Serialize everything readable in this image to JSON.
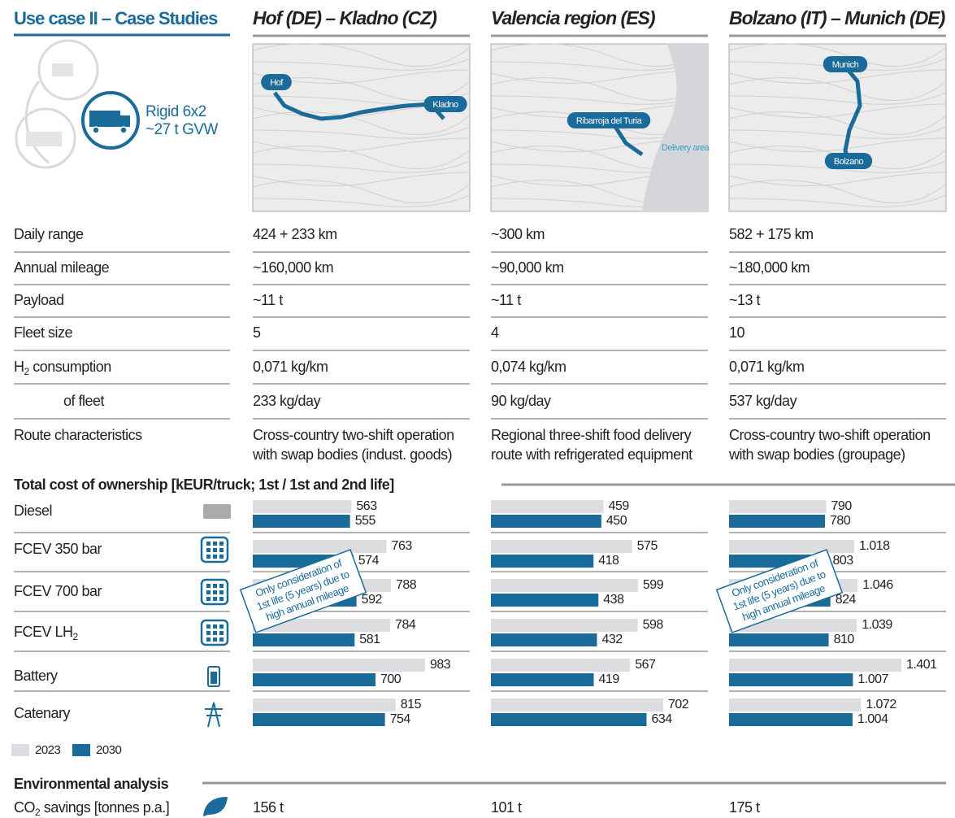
{
  "header": {
    "title": "Use case II – Case Studies",
    "vehicle": [
      "Rigid 6x2",
      "~27 t GVW"
    ]
  },
  "cases": [
    {
      "title": "Hof (DE) – Kladno (CZ)",
      "map_labels": [
        "Hof",
        "Kladno"
      ]
    },
    {
      "title": "Valencia region (ES)",
      "map_labels": [
        "Ribarroja del Turia",
        "Delivery area"
      ]
    },
    {
      "title": "Bolzano (IT) – Munich (DE)",
      "map_labels": [
        "Munich",
        "Bolzano"
      ]
    }
  ],
  "specs": {
    "rows": [
      {
        "label": "Daily range",
        "values": [
          "424 + 233 km",
          "~300 km",
          "582 + 175 km"
        ]
      },
      {
        "label": "Annual mileage",
        "values": [
          "~160,000 km",
          "~90,000 km",
          "~180,000 km"
        ]
      },
      {
        "label": "Payload",
        "values": [
          "~11 t",
          "~11 t",
          "~13 t"
        ]
      },
      {
        "label": "Fleet size",
        "values": [
          5,
          4,
          10
        ]
      },
      {
        "label": {
          "text": "H",
          "sub": "2",
          "after": " consumption"
        },
        "values": [
          "0,071 kg/km",
          "0,074 kg/km",
          "0,071 kg/km"
        ]
      },
      {
        "label": "of fleet",
        "values": [
          "233 kg/day",
          "90 kg/day",
          "537 kg/day"
        ]
      },
      {
        "label": "Route characteristics",
        "values": [
          [
            "Cross-country two-shift operation",
            "with swap bodies (indust. goods)"
          ],
          [
            "Regional three-shift food delivery",
            "route with refrigerated equipment"
          ],
          [
            "Cross-country two-shift operation",
            "with swap bodies (groupage)"
          ]
        ]
      }
    ]
  },
  "tco": {
    "title": "Total cost of ownership [kEUR/truck; 1st / 1st and 2nd life]",
    "categories": [
      "Diesel",
      "FCEV 350 bar",
      "FCEV 700 bar",
      {
        "text": "FCEV LH",
        "sub": "2"
      },
      "Battery",
      "Catenary"
    ],
    "legend": [
      {
        "name": "2023",
        "color": "#dcdde0"
      },
      {
        "name": "2030",
        "color": "#1a6a9a"
      }
    ],
    "panels": [
      {
        "note": [
          "Only consideration of",
          "1st life (5 years) due to",
          "high annual mileage"
        ],
        "series": [
          {
            "values": [
              563,
              763,
              788,
              784,
              983,
              815
            ]
          },
          {
            "values": [
              555,
              574,
              592,
              581,
              700,
              754
            ]
          }
        ]
      },
      {
        "series": [
          {
            "values": [
              459,
              575,
              599,
              598,
              567,
              702
            ]
          },
          {
            "values": [
              450,
              418,
              438,
              432,
              419,
              634
            ]
          }
        ]
      },
      {
        "note": [
          "Only consideration of",
          "1st life (5 years) due to",
          "high annual mileage"
        ],
        "series": [
          {
            "values": [
              790,
              1018,
              1046,
              1039,
              1401,
              1072
            ],
            "value_labels": [
              "790",
              "1.018",
              "1.046",
              "1.039",
              "1.401",
              "1.072"
            ]
          },
          {
            "values": [
              780,
              803,
              824,
              810,
              1007,
              1004
            ],
            "value_labels": [
              "780",
              "803",
              "824",
              "810",
              "1.007",
              "1.004"
            ]
          }
        ]
      }
    ]
  },
  "environment": {
    "title": "Environmental analysis",
    "rows": [
      {
        "label": {
          "text": "CO",
          "sub": "2",
          "after": " savings [tonnes p.a.]"
        },
        "values": [
          "156 t",
          "101 t",
          "175 t"
        ]
      }
    ]
  }
}
